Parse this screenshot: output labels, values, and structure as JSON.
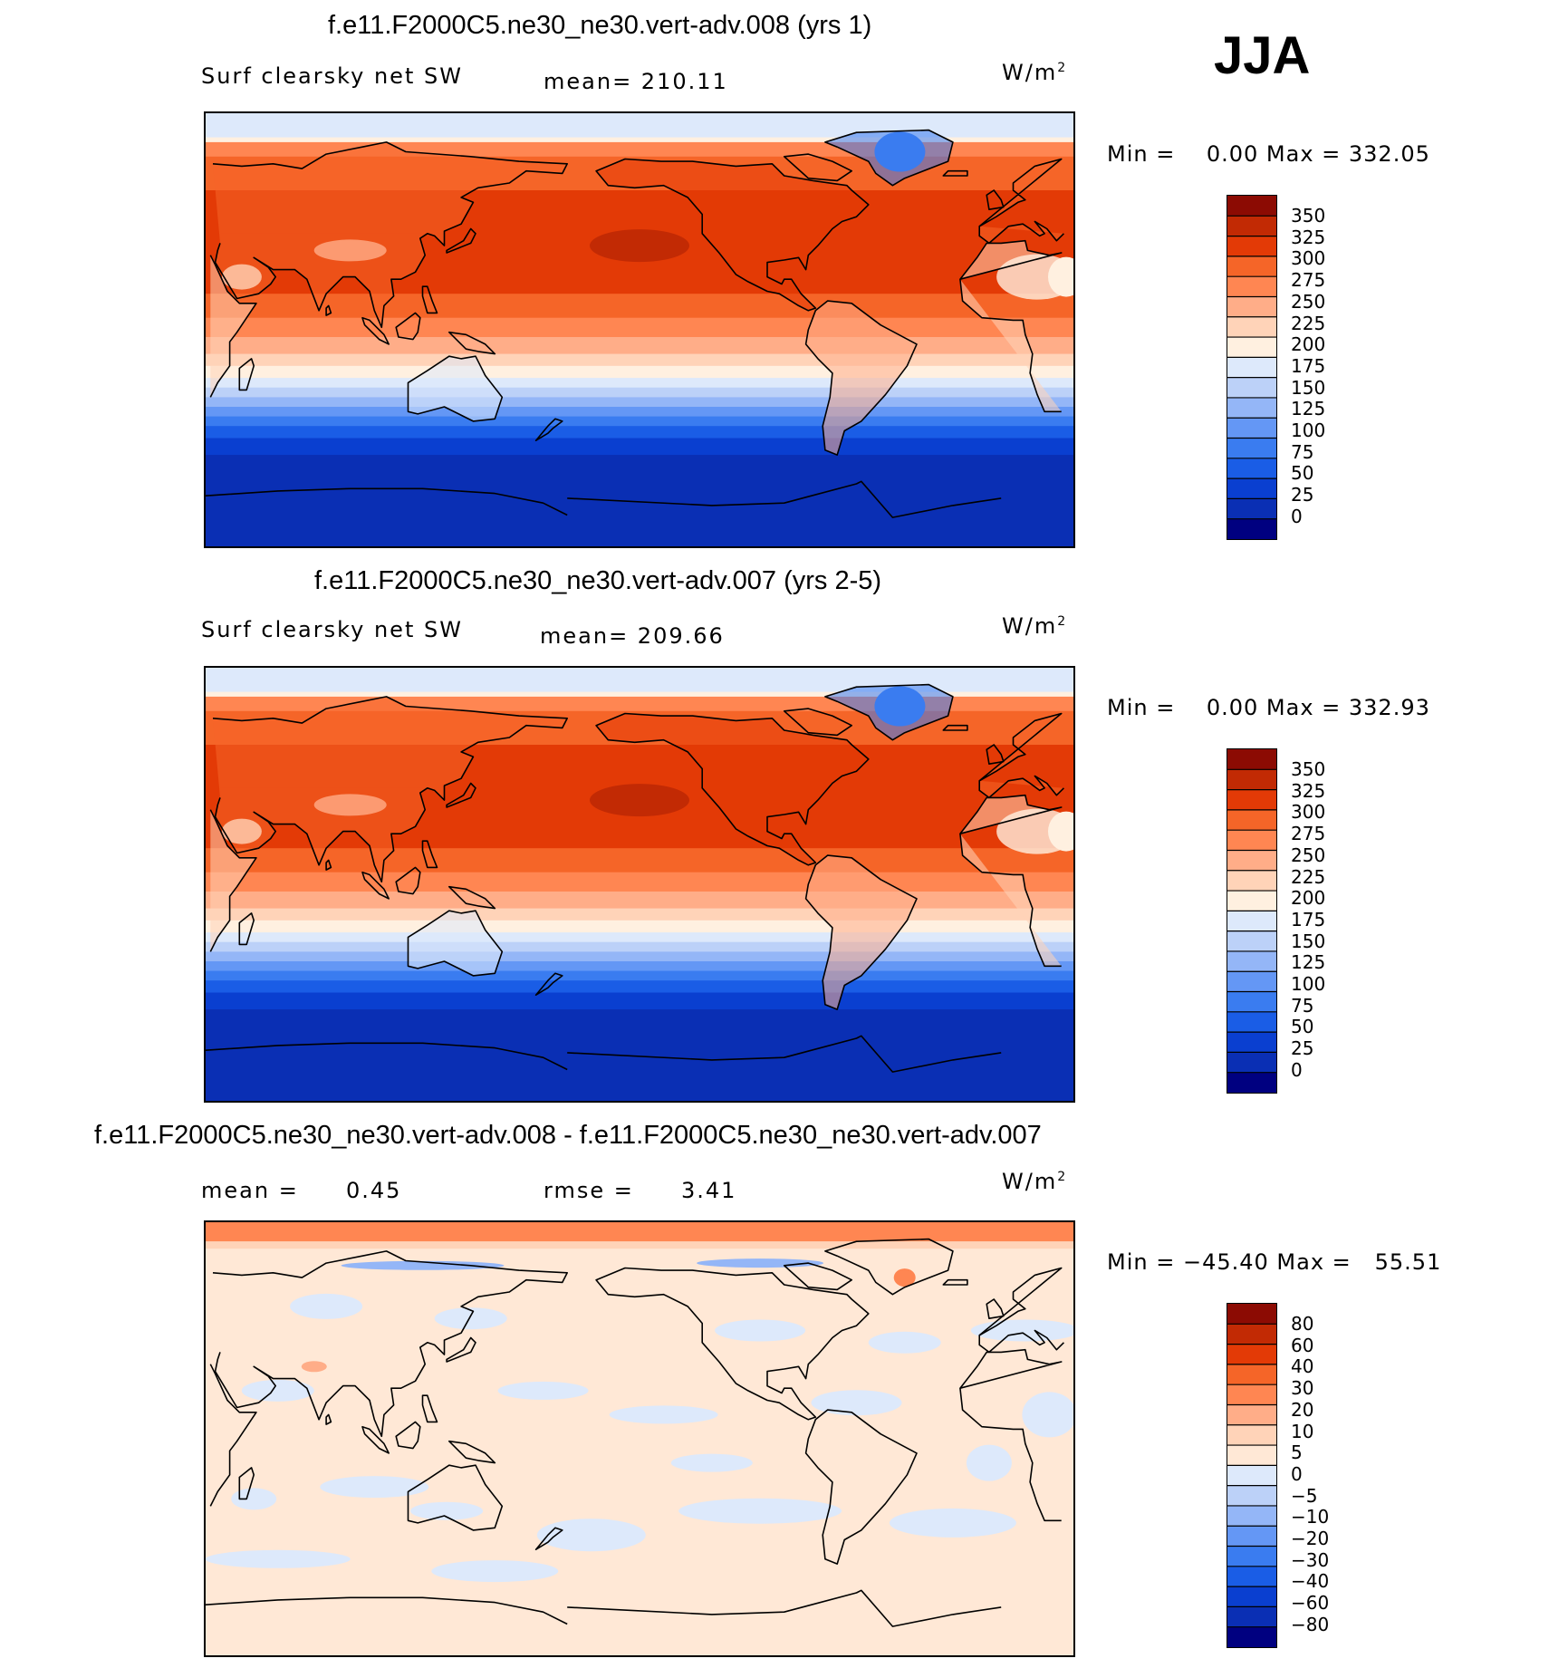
{
  "season_label": "JJA",
  "units_label": "W/m",
  "units_sup": "2",
  "panels": [
    {
      "title": "f.e11.F2000C5.ne30_ne30.vert-adv.008 (yrs 1)",
      "variable": "Surf clearsky net SW",
      "stat_text": "mean= 210.11",
      "minmax_text": "Min =    0.00 Max = 332.05",
      "colorbar_ticks": [
        "350",
        "325",
        "300",
        "275",
        "250",
        "225",
        "200",
        "175",
        "150",
        "125",
        "100",
        "75",
        "50",
        "25",
        "0"
      ]
    },
    {
      "title": "f.e11.F2000C5.ne30_ne30.vert-adv.007 (yrs 2-5)",
      "variable": "Surf clearsky net SW",
      "stat_text": "mean= 209.66",
      "minmax_text": "Min =    0.00 Max = 332.93",
      "colorbar_ticks": [
        "350",
        "325",
        "300",
        "275",
        "250",
        "225",
        "200",
        "175",
        "150",
        "125",
        "100",
        "75",
        "50",
        "25",
        "0"
      ]
    },
    {
      "title": "f.e11.F2000C5.ne30_ne30.vert-adv.008 - f.e11.F2000C5.ne30_ne30.vert-adv.007",
      "mean_label": "mean =",
      "mean_value": "0.45",
      "rmse_label": "rmse =",
      "rmse_value": "3.41",
      "minmax_text": "Min = −45.40 Max =   55.51",
      "colorbar_ticks": [
        "80",
        "60",
        "40",
        "30",
        "20",
        "10",
        "5",
        "0",
        "−5",
        "−10",
        "−20",
        "−30",
        "−40",
        "−60",
        "−80"
      ]
    }
  ],
  "colors": {
    "abs_scale": [
      "#000080",
      "#0a2fb4",
      "#0a3fd0",
      "#1a5de6",
      "#3a7cf0",
      "#6497f5",
      "#94b6f7",
      "#bcd1f8",
      "#dde9fb",
      "#fff0e0",
      "#ffd3b8",
      "#ffad88",
      "#ff8652",
      "#f56528",
      "#e33a06",
      "#c22a04",
      "#8c0b03"
    ],
    "diff_scale": [
      "#000080",
      "#0a2fb4",
      "#0a3fd0",
      "#1a5de6",
      "#3a7cf0",
      "#6497f5",
      "#94b6f7",
      "#bcd1f8",
      "#dde9fb",
      "#ffe8d6",
      "#ffd3b8",
      "#ffad88",
      "#ff8652",
      "#f56528",
      "#e33a06",
      "#c22a04",
      "#8c0b03"
    ]
  },
  "chart_data": [
    {
      "type": "heatmap",
      "title": "f.e11.F2000C5.ne30_ne30.vert-adv.008 (yrs 1)",
      "variable": "Surf clearsky net SW",
      "units": "W/m^2",
      "season": "JJA",
      "mean": 210.11,
      "min": 0.0,
      "max": 332.05,
      "levels": [
        0,
        25,
        50,
        75,
        100,
        125,
        150,
        175,
        200,
        225,
        250,
        275,
        300,
        325,
        350
      ],
      "lat_profile": [
        {
          "lat": 90,
          "value": 160
        },
        {
          "lat": 75,
          "value": 270
        },
        {
          "lat": 60,
          "value": 285
        },
        {
          "lat": 45,
          "value": 305
        },
        {
          "lat": 30,
          "value": 315
        },
        {
          "lat": 15,
          "value": 295
        },
        {
          "lat": 0,
          "value": 270
        },
        {
          "lat": -10,
          "value": 230
        },
        {
          "lat": -20,
          "value": 195
        },
        {
          "lat": -30,
          "value": 140
        },
        {
          "lat": -40,
          "value": 90
        },
        {
          "lat": -50,
          "value": 45
        },
        {
          "lat": -60,
          "value": 15
        },
        {
          "lat": -70,
          "value": 0
        },
        {
          "lat": -90,
          "value": 0
        }
      ]
    },
    {
      "type": "heatmap",
      "title": "f.e11.F2000C5.ne30_ne30.vert-adv.007 (yrs 2-5)",
      "variable": "Surf clearsky net SW",
      "units": "W/m^2",
      "season": "JJA",
      "mean": 209.66,
      "min": 0.0,
      "max": 332.93,
      "levels": [
        0,
        25,
        50,
        75,
        100,
        125,
        150,
        175,
        200,
        225,
        250,
        275,
        300,
        325,
        350
      ],
      "lat_profile": [
        {
          "lat": 90,
          "value": 150
        },
        {
          "lat": 75,
          "value": 265
        },
        {
          "lat": 60,
          "value": 285
        },
        {
          "lat": 45,
          "value": 305
        },
        {
          "lat": 30,
          "value": 315
        },
        {
          "lat": 15,
          "value": 295
        },
        {
          "lat": 0,
          "value": 270
        },
        {
          "lat": -10,
          "value": 230
        },
        {
          "lat": -20,
          "value": 195
        },
        {
          "lat": -30,
          "value": 140
        },
        {
          "lat": -40,
          "value": 90
        },
        {
          "lat": -50,
          "value": 45
        },
        {
          "lat": -60,
          "value": 15
        },
        {
          "lat": -70,
          "value": 0
        },
        {
          "lat": -90,
          "value": 0
        }
      ]
    },
    {
      "type": "heatmap",
      "title": "f.e11.F2000C5.ne30_ne30.vert-adv.008 - f.e11.F2000C5.ne30_ne30.vert-adv.007",
      "units": "W/m^2",
      "season": "JJA",
      "mean": 0.45,
      "rmse": 3.41,
      "min": -45.4,
      "max": 55.51,
      "levels": [
        -80,
        -60,
        -40,
        -30,
        -20,
        -10,
        -5,
        0,
        5,
        10,
        20,
        30,
        40,
        60,
        80
      ]
    }
  ]
}
